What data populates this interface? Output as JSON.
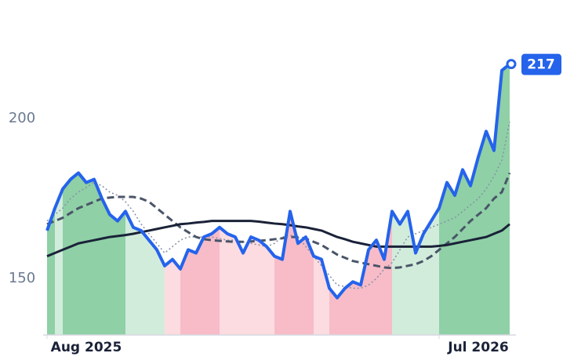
{
  "chart_data": {
    "type": "line",
    "categories": [
      null,
      null,
      null,
      null,
      null,
      "Aug 2025",
      null,
      null,
      null,
      null,
      null,
      null,
      null,
      null,
      null,
      null,
      null,
      null,
      null,
      null,
      null,
      null,
      null,
      null,
      null,
      null,
      null,
      null,
      null,
      null,
      null,
      null,
      null,
      null,
      null,
      null,
      null,
      null,
      null,
      null,
      null,
      null,
      null,
      null,
      null,
      null,
      null,
      null,
      null,
      null,
      null,
      null,
      null,
      null,
      null,
      "Jul 2026",
      null,
      null,
      null,
      null
    ],
    "ylim": [
      132.4,
      232.1
    ],
    "yticks": [
      150,
      200
    ],
    "regions": [
      {
        "from": 0,
        "to": 1,
        "color": "#8fd0a6"
      },
      {
        "from": 1,
        "to": 2,
        "color": "#d2ecdc"
      },
      {
        "from": 2,
        "to": 10,
        "color": "#8fd0a6"
      },
      {
        "from": 10,
        "to": 15,
        "color": "#d2ecdc"
      },
      {
        "from": 15,
        "to": 17,
        "color": "#fcdbe1"
      },
      {
        "from": 17,
        "to": 22,
        "color": "#f7bcc8"
      },
      {
        "from": 22,
        "to": 29,
        "color": "#fcdbe1"
      },
      {
        "from": 29,
        "to": 34,
        "color": "#f7bcc8"
      },
      {
        "from": 34,
        "to": 36,
        "color": "#fcdbe1"
      },
      {
        "from": 36,
        "to": 44,
        "color": "#f7bcc8"
      },
      {
        "from": 44,
        "to": 50,
        "color": "#d2ecdc"
      },
      {
        "from": 50,
        "to": 59,
        "color": "#8fd0a6"
      }
    ],
    "series": [
      {
        "color": "#2563eb",
        "style": "solid",
        "values": [
          165,
          172,
          178,
          181,
          183,
          180,
          181,
          175,
          170,
          168,
          171,
          166,
          165,
          162,
          159,
          154,
          156,
          153,
          159,
          158,
          163,
          164,
          166,
          164,
          163,
          158,
          163,
          162,
          160,
          157,
          156,
          171,
          161,
          163,
          157,
          156,
          147,
          144,
          147,
          149,
          148,
          159,
          162,
          156,
          171,
          167,
          171,
          158,
          164,
          168,
          172,
          180,
          176,
          184,
          179,
          188,
          196,
          190,
          215,
          217
        ]
      },
      {
        "color": "#1a2238",
        "style": "solid",
        "values": [
          157,
          158,
          159,
          160,
          161,
          161.5,
          162,
          162.5,
          163,
          163.3,
          163.6,
          164,
          164.5,
          165,
          165.5,
          166,
          166.5,
          167,
          167.2,
          167.5,
          167.7,
          168,
          168,
          168,
          168,
          168,
          168,
          167.8,
          167.5,
          167.2,
          167,
          166.7,
          166.3,
          166,
          165.5,
          165,
          164,
          163,
          162.3,
          161.5,
          161,
          160.5,
          160,
          160,
          160,
          160,
          160,
          160,
          160,
          160,
          160.2,
          160.5,
          161,
          161.5,
          162,
          162.5,
          163,
          164,
          165,
          167
        ]
      },
      {
        "color": "#4a5568",
        "style": "dashed",
        "values": [
          167,
          168,
          169,
          170.5,
          172,
          173,
          174,
          175,
          175.3,
          175.5,
          175.5,
          175.5,
          175,
          174,
          172,
          170,
          168,
          166,
          164.5,
          163,
          162.3,
          162,
          161.8,
          161.6,
          161.5,
          161.5,
          161.6,
          161.8,
          162,
          162.3,
          162.6,
          163,
          163,
          162.5,
          161.5,
          160.5,
          159,
          157.5,
          156.5,
          155.5,
          155,
          154.5,
          154,
          153.5,
          153.3,
          153.5,
          154,
          154.5,
          155.5,
          157,
          159,
          161,
          163,
          165.5,
          168,
          170,
          172,
          175,
          177,
          183
        ]
      },
      {
        "color": "#8a94a6",
        "style": "dotted",
        "values": [
          168,
          170,
          172,
          175,
          177,
          178.5,
          180,
          179,
          177,
          176,
          174,
          171,
          167,
          164,
          161,
          158,
          160,
          162,
          163,
          163,
          163,
          163,
          162.5,
          162,
          162,
          161.5,
          161,
          160.5,
          160,
          161,
          163,
          163.5,
          163,
          160,
          157,
          154,
          151,
          148,
          147.5,
          147,
          147,
          148,
          150,
          153,
          155,
          159,
          163,
          164,
          165,
          166,
          167,
          168,
          169,
          171,
          173,
          175,
          178,
          182,
          187,
          199
        ]
      }
    ]
  }
}
